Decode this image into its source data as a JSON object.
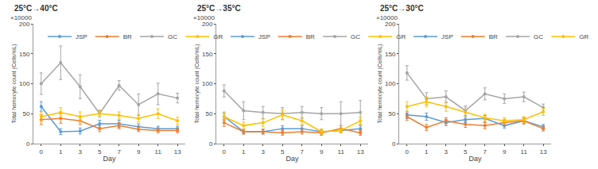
{
  "chart_data": [
    {
      "type": "line",
      "title": "25°C→40°C",
      "annotation": "×10000",
      "x_label": "Day",
      "y_label": "Total hemocyte count (Cells/mL)",
      "categories": [
        "0",
        "1",
        "3",
        "5",
        "7",
        "9",
        "11",
        "13"
      ],
      "ylim": [
        0,
        200
      ],
      "yticks": [
        0,
        50,
        100,
        150,
        200
      ],
      "grid": false,
      "legend": "top",
      "marker": "circle",
      "series": [
        {
          "name": "JSP",
          "color": "#5b9bd5",
          "values": [
            62,
            20,
            21,
            33,
            33,
            28,
            25,
            25
          ],
          "error": [
            8,
            5,
            5,
            6,
            6,
            5,
            4,
            4
          ]
        },
        {
          "name": "BR",
          "color": "#ed7d31",
          "values": [
            40,
            42,
            38,
            25,
            30,
            24,
            22,
            22
          ],
          "error": [
            8,
            8,
            6,
            5,
            5,
            4,
            4,
            4
          ]
        },
        {
          "name": "GC",
          "color": "#a5a5a5",
          "values": [
            100,
            135,
            95,
            50,
            97,
            65,
            83,
            76
          ],
          "error": [
            18,
            28,
            20,
            5,
            8,
            18,
            18,
            8
          ]
        },
        {
          "name": "GR",
          "color": "#ffc000",
          "values": [
            45,
            52,
            45,
            50,
            47,
            42,
            50,
            38
          ],
          "error": [
            8,
            8,
            8,
            6,
            6,
            6,
            8,
            6
          ]
        }
      ]
    },
    {
      "type": "line",
      "title": "25°C→35°C",
      "annotation": "×10000",
      "x_label": "Day",
      "y_label": "Total hemocyte count (Cells/mL)",
      "categories": [
        "0",
        "1",
        "3",
        "5",
        "7",
        "9",
        "11",
        "13"
      ],
      "ylim": [
        0,
        200
      ],
      "yticks": [
        0,
        50,
        100,
        150,
        200
      ],
      "grid": false,
      "legend": "top",
      "marker": "circle",
      "series": [
        {
          "name": "JSP",
          "color": "#5b9bd5",
          "values": [
            45,
            20,
            20,
            25,
            25,
            20,
            22,
            25
          ],
          "error": [
            6,
            4,
            4,
            5,
            5,
            4,
            4,
            5
          ]
        },
        {
          "name": "BR",
          "color": "#ed7d31",
          "values": [
            35,
            20,
            20,
            18,
            20,
            18,
            25,
            18
          ],
          "error": [
            6,
            4,
            4,
            4,
            4,
            4,
            5,
            4
          ]
        },
        {
          "name": "GC",
          "color": "#a5a5a5",
          "values": [
            88,
            55,
            52,
            50,
            52,
            50,
            50,
            52
          ],
          "error": [
            10,
            15,
            10,
            10,
            10,
            10,
            20,
            20
          ]
        },
        {
          "name": "GR",
          "color": "#ffc000",
          "values": [
            45,
            30,
            35,
            48,
            38,
            20,
            22,
            38
          ],
          "error": [
            8,
            6,
            6,
            8,
            6,
            4,
            4,
            6
          ]
        }
      ]
    },
    {
      "type": "line",
      "title": "25°C→30°C",
      "annotation": "×10000",
      "x_label": "Day",
      "y_label": "Total hemocyte count (Cells/mL)",
      "categories": [
        "0",
        "1",
        "3",
        "5",
        "7",
        "9",
        "11",
        "13"
      ],
      "ylim": [
        0,
        200
      ],
      "yticks": [
        0,
        50,
        100,
        150,
        200
      ],
      "grid": false,
      "legend": "top",
      "marker": "circle",
      "series": [
        {
          "name": "JSP",
          "color": "#5b9bd5",
          "values": [
            48,
            45,
            35,
            40,
            42,
            30,
            38,
            28
          ],
          "error": [
            6,
            6,
            5,
            5,
            5,
            4,
            5,
            4
          ]
        },
        {
          "name": "BR",
          "color": "#ed7d31",
          "values": [
            45,
            27,
            38,
            32,
            30,
            35,
            38,
            25
          ],
          "error": [
            6,
            5,
            5,
            5,
            5,
            5,
            5,
            4
          ]
        },
        {
          "name": "GC",
          "color": "#a5a5a5",
          "values": [
            118,
            75,
            78,
            55,
            83,
            75,
            78,
            60
          ],
          "error": [
            12,
            10,
            10,
            8,
            10,
            8,
            8,
            6
          ]
        },
        {
          "name": "GR",
          "color": "#ffc000",
          "values": [
            62,
            70,
            62,
            52,
            43,
            38,
            40,
            53
          ],
          "error": [
            8,
            8,
            8,
            8,
            6,
            5,
            5,
            6
          ]
        }
      ]
    }
  ]
}
